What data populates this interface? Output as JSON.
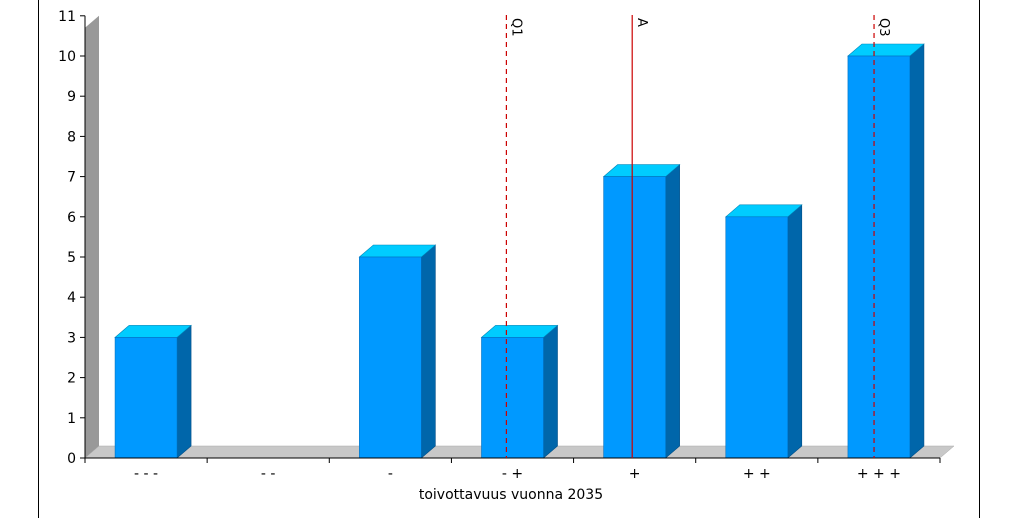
{
  "chart_data": {
    "type": "bar",
    "categories": [
      "- - -",
      "- -",
      "-",
      "- +",
      "+",
      "+ +",
      "+ + +"
    ],
    "values": [
      3,
      0,
      5,
      3,
      7,
      6,
      10
    ],
    "xlabel": "toivottavuus vuonna 2035",
    "ylabel": "",
    "ylim": [
      0,
      11
    ],
    "yticks": [
      "0",
      "1",
      "2",
      "3",
      "4",
      "5",
      "6",
      "7",
      "8",
      "9",
      "10",
      "11"
    ],
    "markers": [
      {
        "label": "Q1",
        "x": 3.45,
        "style": "dashed"
      },
      {
        "label": "A",
        "x": 4.48,
        "style": "solid"
      },
      {
        "label": "Q3",
        "x": 6.46,
        "style": "dashed"
      }
    ],
    "grid": false,
    "colors": {
      "bar_front": "#0099ff",
      "bar_top": "#00ccff",
      "bar_side": "#0066aa",
      "floor": "#c8c8c8",
      "wall": "#999999",
      "marker": "#cc0000"
    }
  }
}
